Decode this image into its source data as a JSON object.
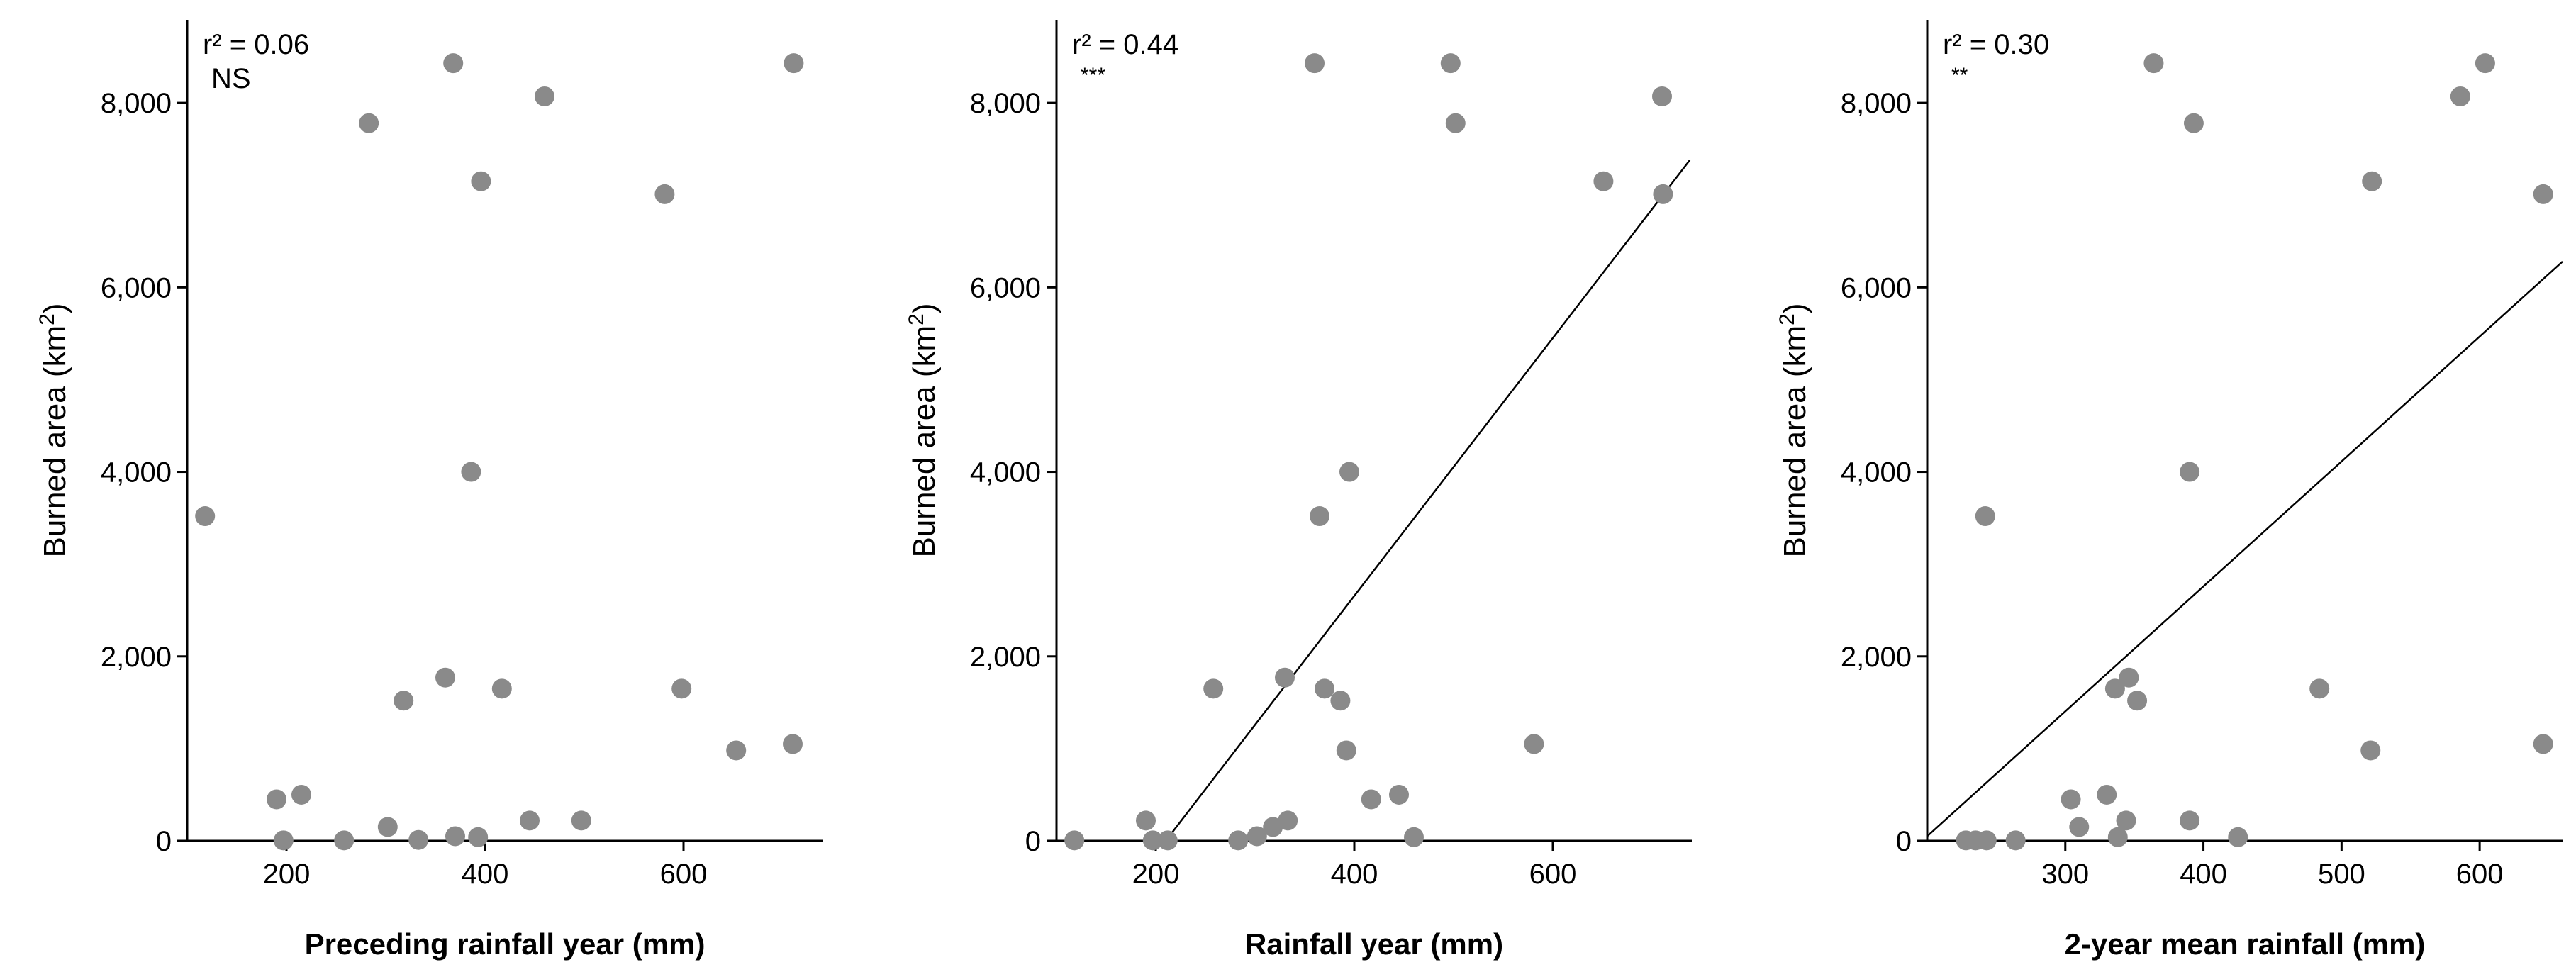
{
  "chart_data": [
    {
      "type": "scatter",
      "xlabel": "Preceding rainfall year (mm)",
      "ylabel": "Burned area (km",
      "ylabel_sup": "2",
      "ylabel_close": ")",
      "xlim": [
        100,
        740
      ],
      "ylim": [
        0,
        8900
      ],
      "xticks": [
        200,
        400,
        600
      ],
      "yticks": [
        0,
        2000,
        4000,
        6000,
        8000
      ],
      "xtick_labels": [
        "200",
        "400",
        "600"
      ],
      "ytick_labels": [
        "0",
        "2,000",
        "4,000",
        "6,000",
        "8,000"
      ],
      "annotation_r2": "r² = 0.06",
      "annotation_sig": "NS",
      "points": [
        {
          "x": 118,
          "y": 3520
        },
        {
          "x": 190,
          "y": 450
        },
        {
          "x": 197,
          "y": 5
        },
        {
          "x": 215,
          "y": 500
        },
        {
          "x": 258,
          "y": 5
        },
        {
          "x": 283,
          "y": 7780
        },
        {
          "x": 302,
          "y": 150
        },
        {
          "x": 318,
          "y": 1520
        },
        {
          "x": 333,
          "y": 10
        },
        {
          "x": 360,
          "y": 1770
        },
        {
          "x": 368,
          "y": 8430
        },
        {
          "x": 370,
          "y": 50
        },
        {
          "x": 386,
          "y": 4000
        },
        {
          "x": 393,
          "y": 40
        },
        {
          "x": 396,
          "y": 7150
        },
        {
          "x": 417,
          "y": 1650
        },
        {
          "x": 445,
          "y": 220
        },
        {
          "x": 460,
          "y": 8070
        },
        {
          "x": 497,
          "y": 220
        },
        {
          "x": 581,
          "y": 7010
        },
        {
          "x": 598,
          "y": 1650
        },
        {
          "x": 653,
          "y": 980
        },
        {
          "x": 710,
          "y": 1050
        },
        {
          "x": 711,
          "y": 8430
        }
      ],
      "fit": null
    },
    {
      "type": "scatter",
      "xlabel": "Rainfall year (mm)",
      "ylabel": "Burned area (km",
      "ylabel_sup": "2",
      "ylabel_close": ")",
      "xlim": [
        100,
        740
      ],
      "ylim": [
        0,
        8900
      ],
      "xticks": [
        200,
        400,
        600
      ],
      "yticks": [
        0,
        2000,
        4000,
        6000,
        8000
      ],
      "xtick_labels": [
        "200",
        "400",
        "600"
      ],
      "ytick_labels": [
        "0",
        "2,000",
        "4,000",
        "6,000",
        "8,000"
      ],
      "annotation_r2": "r² = 0.44",
      "annotation_sig": "***",
      "points": [
        {
          "x": 118,
          "y": 5
        },
        {
          "x": 190,
          "y": 220
        },
        {
          "x": 197,
          "y": 5
        },
        {
          "x": 212,
          "y": 5
        },
        {
          "x": 258,
          "y": 1650
        },
        {
          "x": 283,
          "y": 5
        },
        {
          "x": 302,
          "y": 50
        },
        {
          "x": 318,
          "y": 150
        },
        {
          "x": 333,
          "y": 220
        },
        {
          "x": 330,
          "y": 1770
        },
        {
          "x": 360,
          "y": 8430
        },
        {
          "x": 365,
          "y": 3520
        },
        {
          "x": 370,
          "y": 1650
        },
        {
          "x": 386,
          "y": 1520
        },
        {
          "x": 392,
          "y": 980
        },
        {
          "x": 395,
          "y": 4000
        },
        {
          "x": 417,
          "y": 450
        },
        {
          "x": 445,
          "y": 500
        },
        {
          "x": 460,
          "y": 40
        },
        {
          "x": 497,
          "y": 8430
        },
        {
          "x": 502,
          "y": 7780
        },
        {
          "x": 581,
          "y": 1050
        },
        {
          "x": 651,
          "y": 7150
        },
        {
          "x": 710,
          "y": 8070
        },
        {
          "x": 711,
          "y": 7010
        }
      ],
      "fit": {
        "x1": 210,
        "y1": 0,
        "x2": 738,
        "y2": 7380
      }
    },
    {
      "type": "scatter",
      "xlabel": "2-year mean rainfall (mm)",
      "ylabel": "Burned area (km",
      "ylabel_sup": "2",
      "ylabel_close": ")",
      "xlim": [
        200,
        660
      ],
      "ylim": [
        0,
        8900
      ],
      "xticks": [
        300,
        400,
        500,
        600
      ],
      "yticks": [
        0,
        2000,
        4000,
        6000,
        8000
      ],
      "xtick_labels": [
        "300",
        "400",
        "500",
        "600"
      ],
      "ytick_labels": [
        "0",
        "2,000",
        "4,000",
        "6,000",
        "8,000"
      ],
      "annotation_r2": "r² = 0.30",
      "annotation_sig": "**",
      "points": [
        {
          "x": 228,
          "y": 5
        },
        {
          "x": 235,
          "y": 5
        },
        {
          "x": 242,
          "y": 3520
        },
        {
          "x": 243,
          "y": 5
        },
        {
          "x": 264,
          "y": 5
        },
        {
          "x": 304,
          "y": 450
        },
        {
          "x": 310,
          "y": 150
        },
        {
          "x": 330,
          "y": 500
        },
        {
          "x": 336,
          "y": 1650
        },
        {
          "x": 338,
          "y": 40
        },
        {
          "x": 344,
          "y": 220
        },
        {
          "x": 346,
          "y": 1770
        },
        {
          "x": 352,
          "y": 1520
        },
        {
          "x": 364,
          "y": 8430
        },
        {
          "x": 390,
          "y": 4000
        },
        {
          "x": 390,
          "y": 220
        },
        {
          "x": 393,
          "y": 7780
        },
        {
          "x": 425,
          "y": 40
        },
        {
          "x": 484,
          "y": 1650
        },
        {
          "x": 521,
          "y": 980
        },
        {
          "x": 522,
          "y": 7150
        },
        {
          "x": 586,
          "y": 8070
        },
        {
          "x": 604,
          "y": 8430
        },
        {
          "x": 646,
          "y": 1050
        },
        {
          "x": 646,
          "y": 7010
        }
      ],
      "fit": {
        "x1": 200,
        "y1": 50,
        "x2": 660,
        "y2": 6280
      }
    }
  ]
}
